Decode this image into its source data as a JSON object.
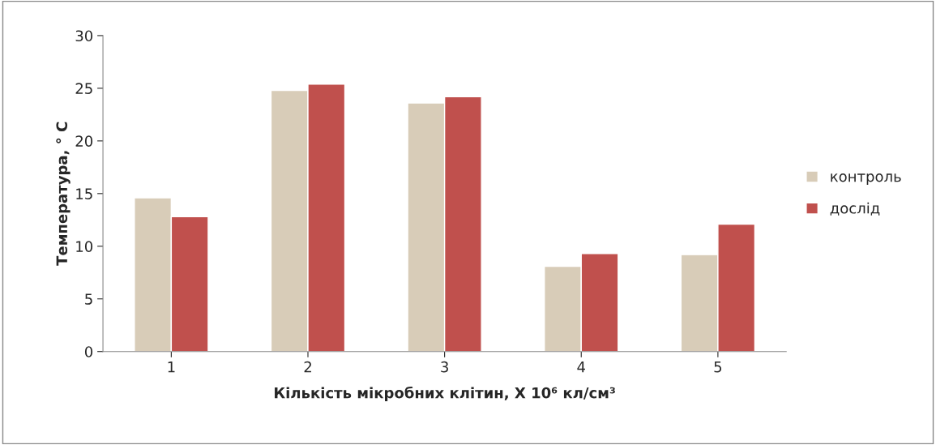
{
  "chart_data": {
    "type": "bar",
    "categories": [
      "1",
      "2",
      "3",
      "4",
      "5"
    ],
    "series": [
      {
        "name": "контроль",
        "color": "#d8ccb8",
        "values": [
          14.6,
          24.8,
          23.6,
          8.1,
          9.2
        ]
      },
      {
        "name": "дослід",
        "color": "#c0504d",
        "values": [
          12.8,
          25.4,
          24.2,
          9.3,
          12.1
        ]
      }
    ],
    "xlabel": "Кількість мікробних клітин, X 10⁶ кл/см³",
    "ylabel": "Температура, ° С",
    "ylim": [
      0,
      30
    ],
    "yticks": [
      0,
      5,
      10,
      15,
      20,
      25,
      30
    ],
    "grid": false,
    "legend": "right"
  }
}
